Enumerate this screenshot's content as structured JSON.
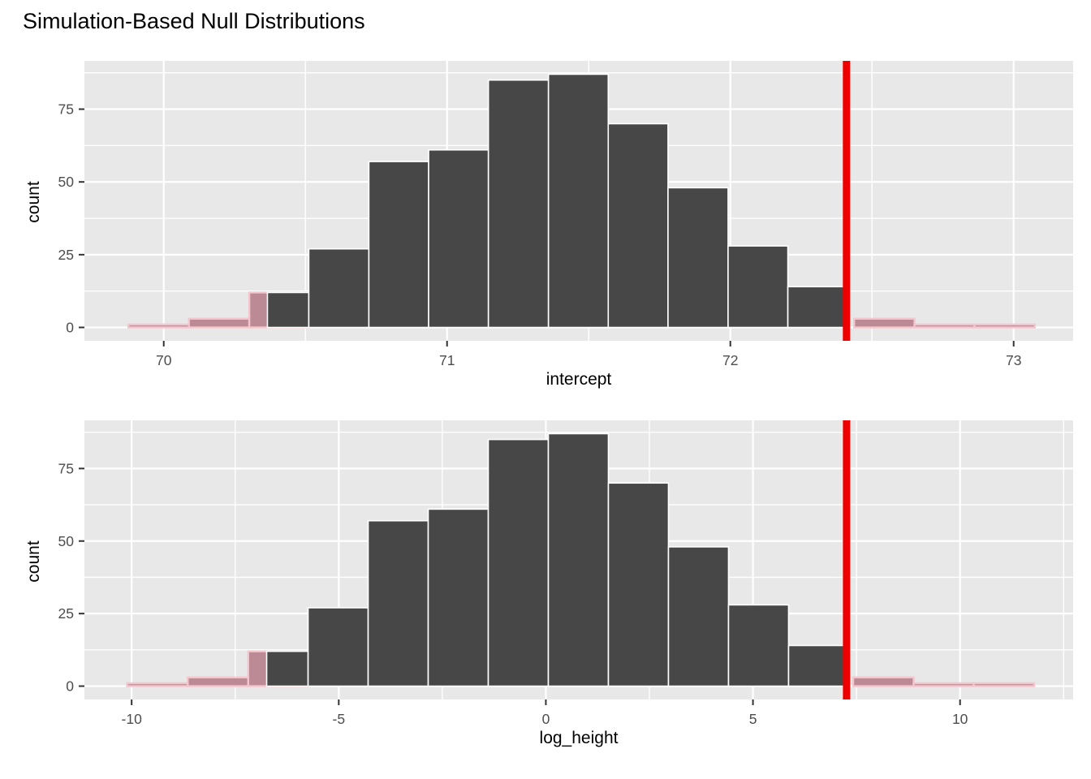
{
  "title": "Simulation-Based Null Distributions",
  "colors": {
    "panel_background": "#E8E8E8",
    "grid_line": "#FFFFFF",
    "null_bar_fill": "#474747",
    "null_bar_stroke": "#FFFFFF",
    "shaded_bar_fill": "#BB8A94",
    "shaded_bar_stroke": "#F3C6CE",
    "observed_line": "#EE0000",
    "tick_label": "#4D4D4D",
    "tick_mark": "#333333"
  },
  "chart_data": {
    "type": "bar",
    "title": "Simulation-Based Null Distributions",
    "subtitle": "",
    "legend": "none",
    "grid": "on",
    "charts": [
      {
        "xlabel": "intercept",
        "ylabel": "count",
        "xlim": [
          69.72,
          73.21
        ],
        "ylim": [
          -4.6,
          91.6
        ],
        "observed_stat": 72.41,
        "x_ticks": [
          {
            "v": 70,
            "label": "70"
          },
          {
            "v": 71,
            "label": "71"
          },
          {
            "v": 72,
            "label": "72"
          },
          {
            "v": 73,
            "label": "73"
          }
        ],
        "y_ticks": [
          {
            "v": 0,
            "label": "0"
          },
          {
            "v": 25,
            "label": "25"
          },
          {
            "v": 50,
            "label": "50"
          },
          {
            "v": 75,
            "label": "75"
          }
        ],
        "x_minor": [
          70.5,
          71.5,
          72.5
        ],
        "y_minor": [
          12.5,
          37.5,
          62.5,
          87.5
        ],
        "shaded_bins": [
          {
            "x0": 69.875,
            "x1": 70.089,
            "count": 1
          },
          {
            "x0": 70.089,
            "x1": 70.302,
            "count": 3
          },
          {
            "x0": 70.302,
            "x1": 70.514,
            "count": 12
          },
          {
            "x0": 72.437,
            "x1": 72.65,
            "count": 3
          },
          {
            "x0": 72.65,
            "x1": 72.862,
            "count": 1
          },
          {
            "x0": 72.862,
            "x1": 73.075,
            "count": 1
          }
        ],
        "null_bins": [
          {
            "x0": 70.366,
            "x1": 70.512,
            "count": 12
          },
          {
            "x0": 70.512,
            "x1": 70.724,
            "count": 27
          },
          {
            "x0": 70.724,
            "x1": 70.935,
            "count": 57
          },
          {
            "x0": 70.935,
            "x1": 71.146,
            "count": 61
          },
          {
            "x0": 71.146,
            "x1": 71.358,
            "count": 85
          },
          {
            "x0": 71.358,
            "x1": 71.569,
            "count": 87
          },
          {
            "x0": 71.569,
            "x1": 71.78,
            "count": 70
          },
          {
            "x0": 71.78,
            "x1": 71.992,
            "count": 48
          },
          {
            "x0": 71.992,
            "x1": 72.203,
            "count": 28
          },
          {
            "x0": 72.203,
            "x1": 72.414,
            "count": 14
          }
        ]
      },
      {
        "xlabel": "log_height",
        "ylabel": "count",
        "xlim": [
          -11.14,
          12.73
        ],
        "ylim": [
          -4.6,
          91.6
        ],
        "observed_stat": 7.26,
        "x_ticks": [
          {
            "v": -10,
            "label": "-10"
          },
          {
            "v": -5,
            "label": "-5"
          },
          {
            "v": 0,
            "label": "0"
          },
          {
            "v": 5,
            "label": "5"
          },
          {
            "v": 10,
            "label": "10"
          }
        ],
        "y_ticks": [
          {
            "v": 0,
            "label": "0"
          },
          {
            "v": 25,
            "label": "25"
          },
          {
            "v": 50,
            "label": "50"
          },
          {
            "v": 75,
            "label": "75"
          }
        ],
        "x_minor": [
          -7.5,
          -2.5,
          2.5,
          7.5,
          12.5
        ],
        "y_minor": [
          12.5,
          37.5,
          62.5,
          87.5
        ],
        "shaded_bins": [
          {
            "x0": -10.11,
            "x1": -8.645,
            "count": 1
          },
          {
            "x0": -8.645,
            "x1": -7.185,
            "count": 3
          },
          {
            "x0": -7.185,
            "x1": -5.73,
            "count": 12
          },
          {
            "x0": 7.42,
            "x1": 8.88,
            "count": 3
          },
          {
            "x0": 8.88,
            "x1": 10.33,
            "count": 1
          },
          {
            "x0": 10.33,
            "x1": 11.79,
            "count": 1
          }
        ],
        "null_bins": [
          {
            "x0": -6.74,
            "x1": -5.74,
            "count": 12
          },
          {
            "x0": -5.74,
            "x1": -4.29,
            "count": 27
          },
          {
            "x0": -4.29,
            "x1": -2.84,
            "count": 57
          },
          {
            "x0": -2.84,
            "x1": -1.39,
            "count": 61
          },
          {
            "x0": -1.39,
            "x1": 0.06,
            "count": 85
          },
          {
            "x0": 0.06,
            "x1": 1.51,
            "count": 87
          },
          {
            "x0": 1.51,
            "x1": 2.96,
            "count": 70
          },
          {
            "x0": 2.96,
            "x1": 4.41,
            "count": 48
          },
          {
            "x0": 4.41,
            "x1": 5.86,
            "count": 28
          },
          {
            "x0": 5.86,
            "x1": 7.31,
            "count": 14
          }
        ]
      }
    ]
  }
}
